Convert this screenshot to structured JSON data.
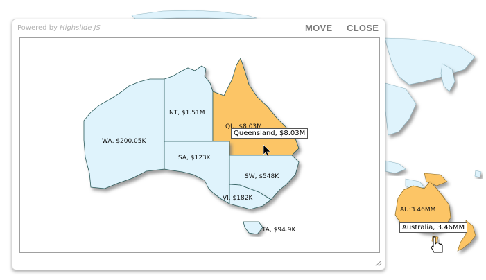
{
  "window": {
    "powered_prefix": "Powered by",
    "powered_brand": "Highslide JS",
    "move_label": "MOVE",
    "close_label": "CLOSE"
  },
  "regions": [
    {
      "id": "wa",
      "label": "WA, $200.05K"
    },
    {
      "id": "nt",
      "label": "NT, $1.51M"
    },
    {
      "id": "qu",
      "label": "QU, $8.03M"
    },
    {
      "id": "sa",
      "label": "SA, $123K"
    },
    {
      "id": "sw",
      "label": "SW, $548K"
    },
    {
      "id": "vi",
      "label": "VI, $182K"
    },
    {
      "id": "ta",
      "label": "TA, $94.9K"
    }
  ],
  "tooltip_region": "Queensland, $8.03M",
  "world_map": {
    "au_label": "AU:3.46MM",
    "tooltip": "Australia, 3.46MM"
  },
  "colors": {
    "land_default": "#dff3fc",
    "land_highlight": "#fcc566",
    "border": "#2a5a5a",
    "shadow": "#9a9a9a"
  }
}
